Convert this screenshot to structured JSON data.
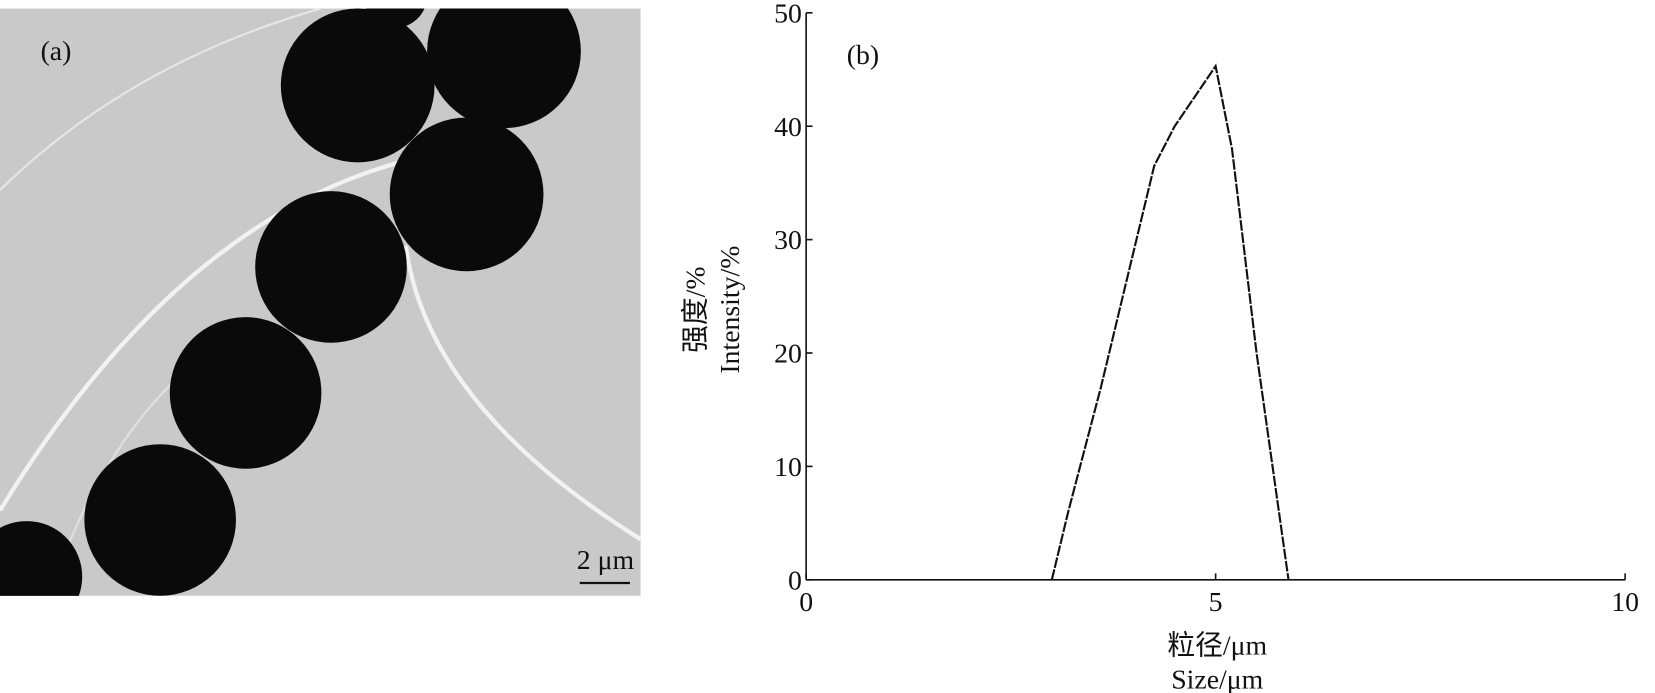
{
  "panel_a": {
    "label": "(a)",
    "scale_bar": "2 μm"
  },
  "chart_data": {
    "type": "line",
    "panel_label": "(b)",
    "y_label": [
      "强度/%",
      "Intensity/%"
    ],
    "x_label": [
      "粒径/μm",
      "Size/μm"
    ],
    "x": [
      3.0,
      3.2,
      3.6,
      4.0,
      4.25,
      4.5,
      5.0,
      5.2,
      5.5,
      5.89
    ],
    "values": [
      0,
      6,
      17,
      29,
      36.5,
      40,
      45.3,
      38,
      20,
      0
    ],
    "color": "#111111",
    "xlim": [
      0,
      10
    ],
    "xticks": [
      0,
      5,
      10
    ],
    "ylim": [
      0,
      50
    ],
    "yticks": [
      0,
      10,
      20,
      30,
      40,
      50
    ]
  }
}
